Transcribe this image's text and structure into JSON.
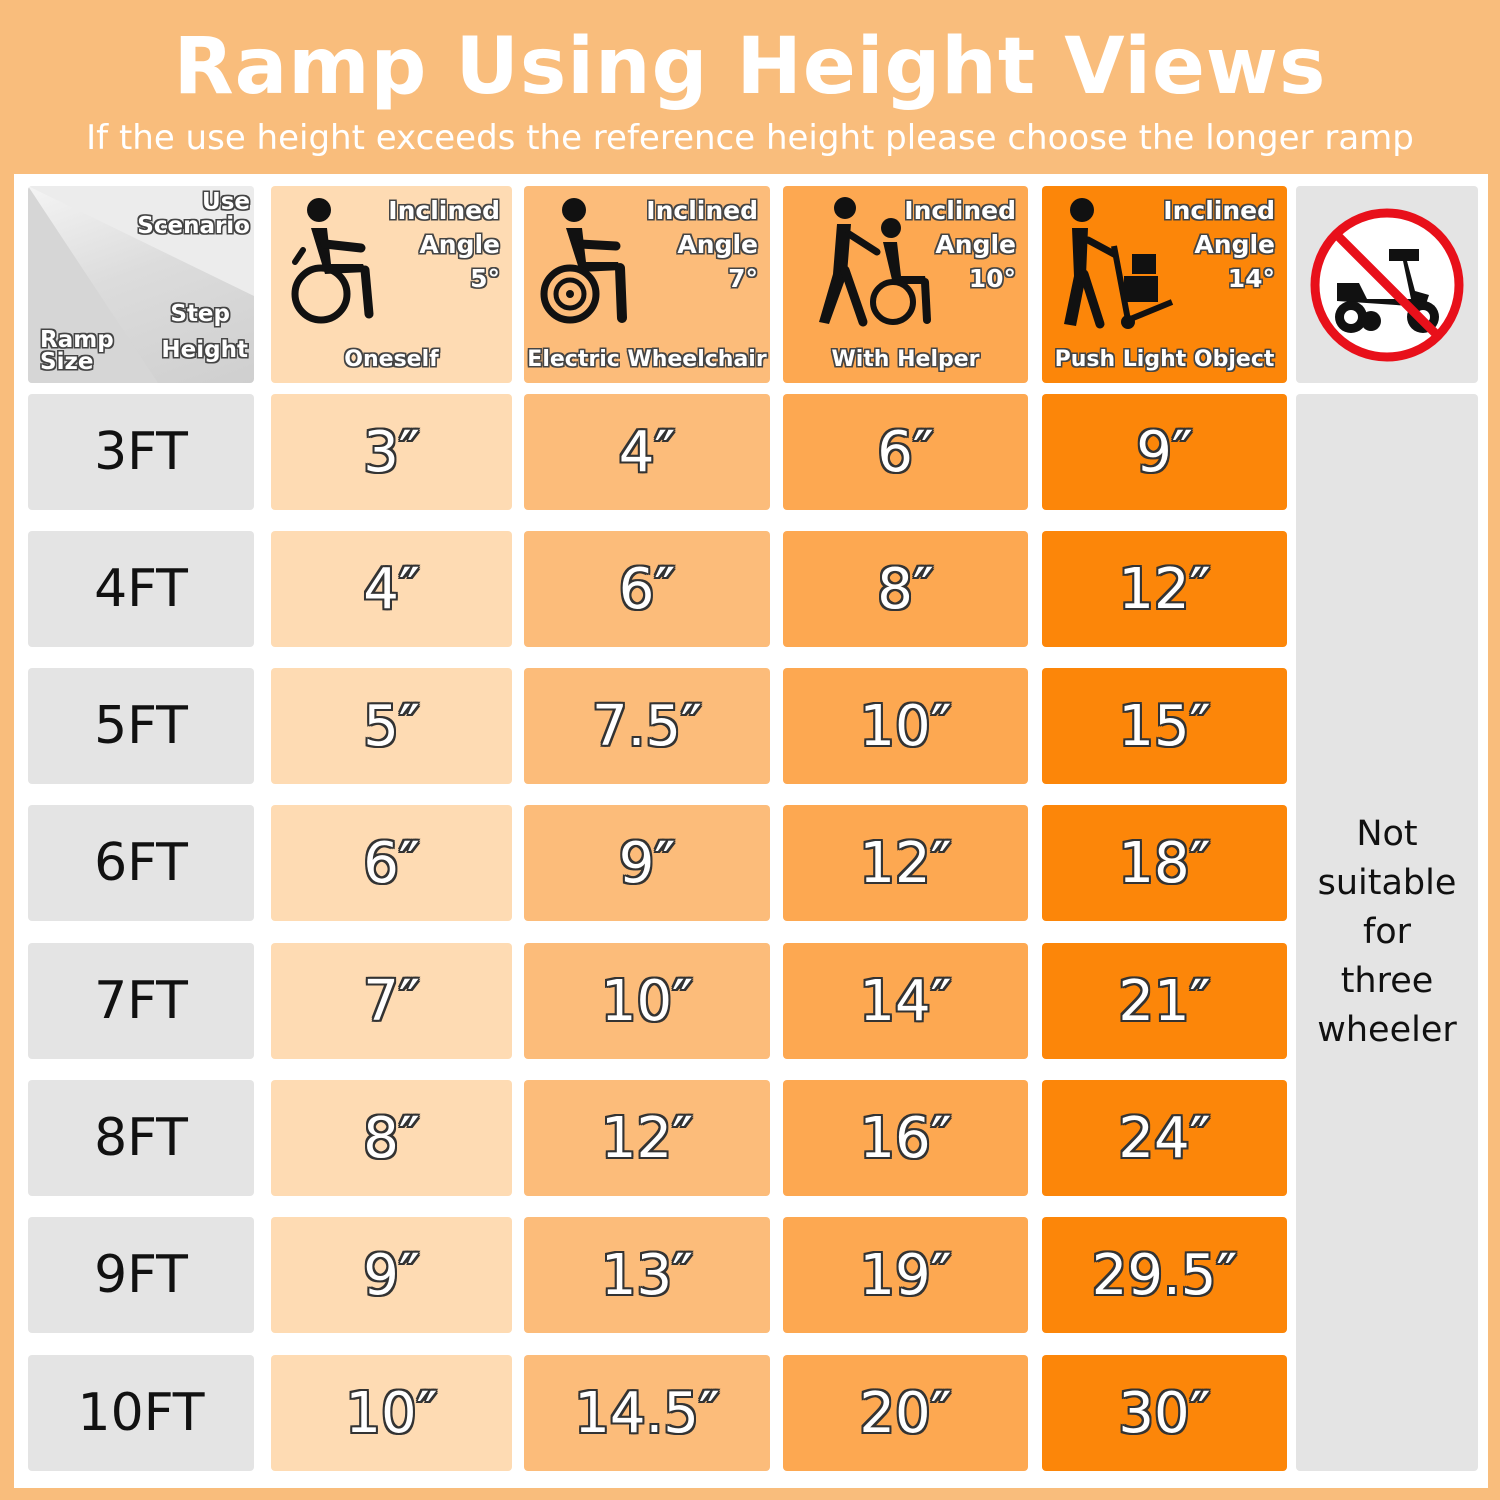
{
  "title": "Ramp Using Height Views",
  "subtitle": "If the use height exceeds the reference height please choose the longer ramp",
  "corner": {
    "use": "Use",
    "scenario": "Scenario",
    "step": "Step",
    "height": "Height",
    "ramp": "Ramp",
    "size": "Size"
  },
  "columns": [
    {
      "inclined": "Inclined",
      "angle_word": "Angle",
      "angle": "5°",
      "label": "Oneself",
      "icon": "wheelchair-user-icon",
      "color": "#fedbb3"
    },
    {
      "inclined": "Inclined",
      "angle_word": "Angle",
      "angle": "7°",
      "label": "Electric Wheelchair",
      "icon": "electric-wheelchair-icon",
      "color": "#fcbc7a"
    },
    {
      "inclined": "Inclined",
      "angle_word": "Angle",
      "angle": "10°",
      "label": "With Helper",
      "icon": "helper-pushing-wheelchair-icon",
      "color": "#fda851"
    },
    {
      "inclined": "Inclined",
      "angle_word": "Angle",
      "angle": "14°",
      "label": "Push Light Object",
      "icon": "hand-truck-icon",
      "color": "#fc8609"
    }
  ],
  "no_scooter_icon": "no-scooter-icon",
  "rows": [
    {
      "size": "3FT",
      "values": [
        "3″",
        "4″",
        "6″",
        "9″"
      ]
    },
    {
      "size": "4FT",
      "values": [
        "4″",
        "6″",
        "8″",
        "12″"
      ]
    },
    {
      "size": "5FT",
      "values": [
        "5″",
        "7.5″",
        "10″",
        "15″"
      ]
    },
    {
      "size": "6FT",
      "values": [
        "6″",
        "9″",
        "12″",
        "18″"
      ]
    },
    {
      "size": "7FT",
      "values": [
        "7″",
        "10″",
        "14″",
        "21″"
      ]
    },
    {
      "size": "8FT",
      "values": [
        "8″",
        "12″",
        "16″",
        "24″"
      ]
    },
    {
      "size": "9FT",
      "values": [
        "9″",
        "13″",
        "19″",
        "29.5″"
      ]
    },
    {
      "size": "10FT",
      "values": [
        "10″",
        "14.5″",
        "20″",
        "30″"
      ]
    }
  ],
  "note": {
    "line1": "Not",
    "line2": "suitable",
    "line3": "for",
    "line4": "three",
    "line5": "wheeler"
  }
}
